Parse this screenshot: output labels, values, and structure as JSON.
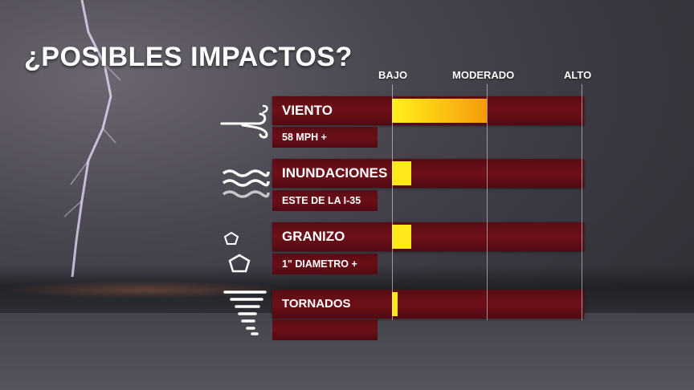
{
  "title": "¿POSIBLES IMPACTOS?",
  "scale": {
    "low": "BAJO",
    "moderate": "MODERADO",
    "high": "ALTO"
  },
  "colors": {
    "bar": "#5e0d16",
    "fill_start": "#fff11a",
    "fill_end": "#f59a0a",
    "fill": "#ffe81a"
  },
  "impacts": [
    {
      "label": "VIENTO",
      "detail": "58 MPH +",
      "icon": "wind-icon",
      "level": 0.5
    },
    {
      "label": "INUNDACIONES",
      "detail": "ESTE DE LA I-35",
      "icon": "flood-waves-icon",
      "level": 0.1
    },
    {
      "label": "GRANIZO",
      "detail": "1\" DIAMETRO +",
      "icon": "hail-icon",
      "level": 0.1
    },
    {
      "label": "TORNADOS",
      "detail": "",
      "icon": "tornado-icon",
      "level": 0.03
    }
  ]
}
